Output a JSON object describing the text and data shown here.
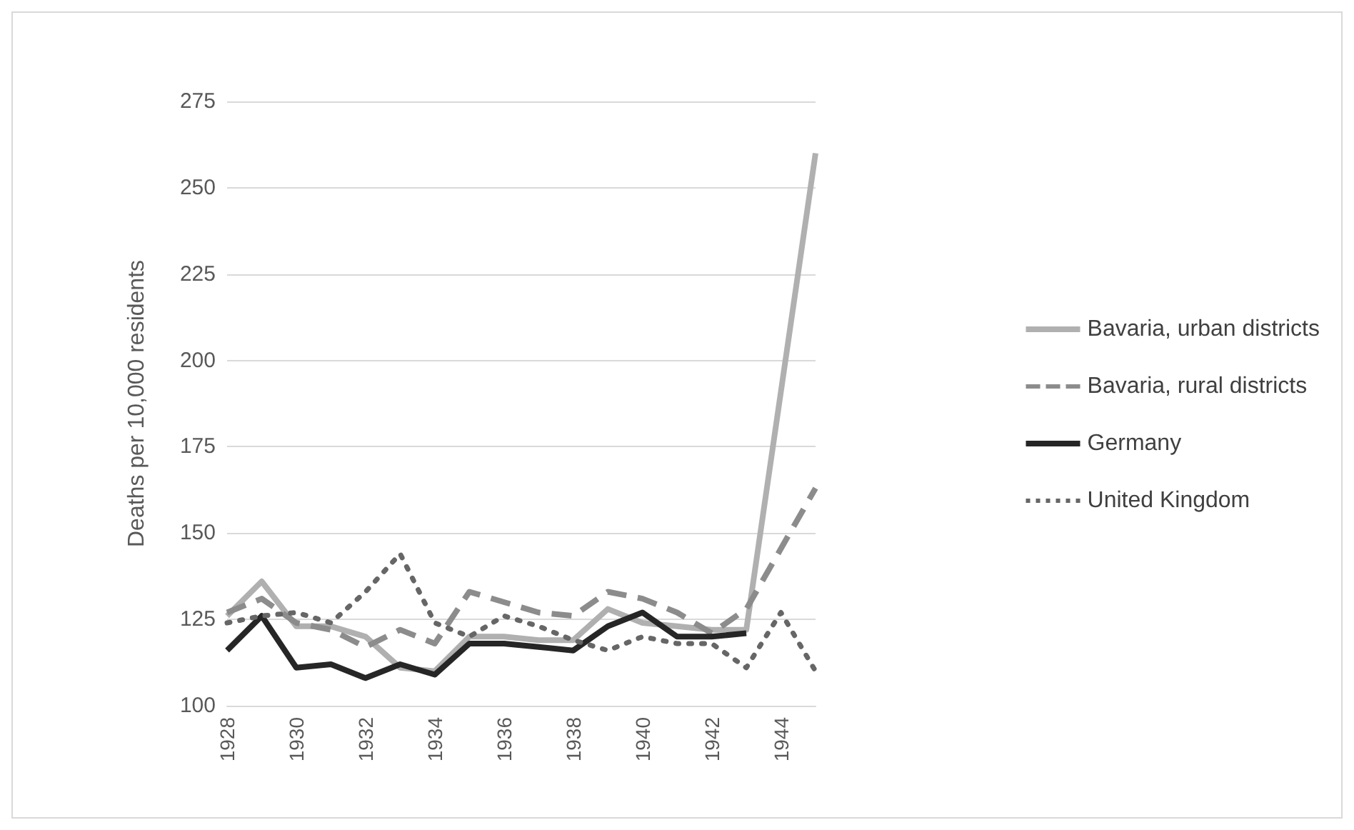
{
  "chart_data": {
    "type": "line",
    "ylabel": "Deaths per 10,000 residents",
    "categories": [
      "1928",
      null,
      "1930",
      null,
      "1932",
      null,
      "1934",
      null,
      "1936",
      null,
      "1938",
      null,
      "1940",
      null,
      "1942",
      null,
      "1944",
      null
    ],
    "ylim": [
      100,
      275
    ],
    "yticks": [
      100,
      125,
      150,
      175,
      200,
      225,
      250,
      275
    ],
    "grid": "y",
    "legend": "right",
    "marker": "none",
    "series": [
      {
        "name": "Bavaria, urban districts",
        "color": "#b0b0b0",
        "line_style": "solid",
        "values": [
          126,
          136,
          123,
          123,
          120,
          111,
          110,
          120,
          120,
          119,
          119,
          128,
          124,
          123,
          122,
          122,
          null,
          260
        ]
      },
      {
        "name": "Bavaria, rural districts",
        "color": "#8c8c8c",
        "line_style": "dashed",
        "values": [
          127,
          131,
          124,
          122,
          117,
          122,
          118,
          133,
          130,
          127,
          126,
          133,
          131,
          127,
          121,
          128,
          null,
          163
        ]
      },
      {
        "name": "Germany",
        "color": "#262626",
        "line_style": "solid",
        "values": [
          116,
          126,
          111,
          112,
          108,
          112,
          109,
          118,
          118,
          117,
          116,
          123,
          127,
          120,
          120,
          121,
          null,
          null
        ]
      },
      {
        "name": "United Kingdom",
        "color": "#666666",
        "line_style": "dotted",
        "values": [
          124,
          126,
          127,
          124,
          133,
          144,
          124,
          120,
          126,
          123,
          119,
          116,
          120,
          118,
          118,
          111,
          127,
          110
        ]
      }
    ]
  }
}
